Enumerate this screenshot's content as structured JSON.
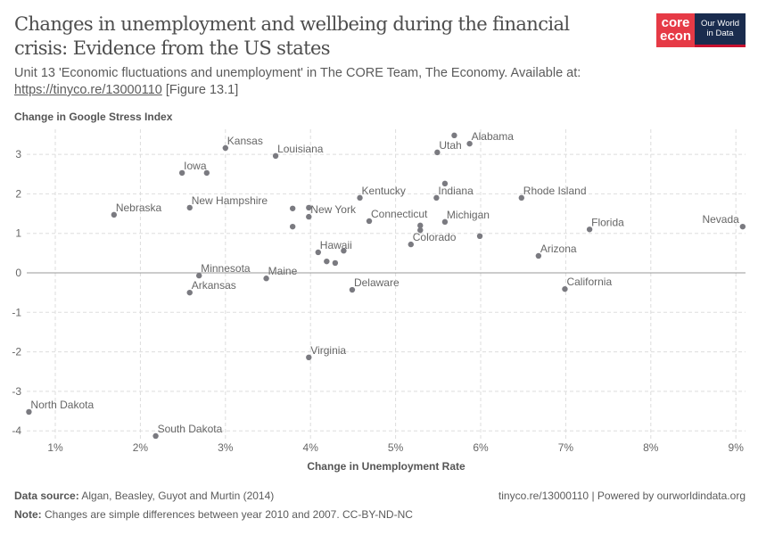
{
  "title": "Changes in unemployment and wellbeing during the financial crisis: Evidence from the US states",
  "subtitle_text": "Unit 13 'Economic fluctuations and unemployment' in The CORE Team, The Economy. Available at:",
  "subtitle_link": "https://tinyco.re/13000110",
  "subtitle_suffix": " [Figure 13.1]",
  "logo": {
    "core_line1": "core",
    "core_line2": "econ",
    "owid_line1": "Our World",
    "owid_line2": "in Data",
    "core_color": "#e63a46",
    "owid_color": "#1a2c4e"
  },
  "footer": {
    "source_label": "Data source:",
    "source_text": " Algan, Beasley, Guyot and Murtin (2014)",
    "note_label": "Note:",
    "note_text": " Changes are simple differences between year 2010 and 2007. CC-BY-ND-NC",
    "right_text": "tinyco.re/13000110 | Powered by ourworldindata.org"
  },
  "chart_data": {
    "type": "scatter",
    "xlabel": "Change in Unemployment Rate",
    "ylabel": "Change in Google Stress Index",
    "xlim": [
      0.68,
      9.1
    ],
    "ylim": [
      -4.3,
      3.6
    ],
    "x_ticks": [
      1,
      2,
      3,
      4,
      5,
      6,
      7,
      8,
      9
    ],
    "x_tick_labels": [
      "1%",
      "2%",
      "3%",
      "4%",
      "5%",
      "6%",
      "7%",
      "8%",
      "9%"
    ],
    "y_ticks": [
      -4,
      -3,
      -2,
      -1,
      0,
      1,
      2,
      3
    ],
    "y_tick_labels": [
      "-4",
      "-3",
      "-2",
      "-1",
      "0",
      "1",
      "2",
      "3"
    ],
    "grid": true,
    "point_color": "#7a7a80",
    "points": [
      {
        "label": "Kansas",
        "x": 3.0,
        "y": 3.16
      },
      {
        "label": "Louisiana",
        "x": 3.59,
        "y": 2.96
      },
      {
        "label": "Iowa",
        "x": 2.49,
        "y": 2.53
      },
      {
        "label": "",
        "x": 2.78,
        "y": 2.53
      },
      {
        "label": "Nebraska",
        "x": 1.69,
        "y": 1.47
      },
      {
        "label": "New Hampshire",
        "x": 2.58,
        "y": 1.65
      },
      {
        "label": "",
        "x": 3.79,
        "y": 1.63
      },
      {
        "label": "",
        "x": 3.98,
        "y": 1.65
      },
      {
        "label": "New York",
        "x": 3.98,
        "y": 1.42
      },
      {
        "label": "",
        "x": 3.79,
        "y": 1.17
      },
      {
        "label": "Kentucky",
        "x": 4.58,
        "y": 1.9
      },
      {
        "label": "Connecticut",
        "x": 4.69,
        "y": 1.31
      },
      {
        "label": "",
        "x": 5.29,
        "y": 1.2
      },
      {
        "label": "",
        "x": 5.29,
        "y": 1.08
      },
      {
        "label": "Colorado",
        "x": 5.18,
        "y": 0.72
      },
      {
        "label": "Hawaii",
        "x": 4.09,
        "y": 0.52
      },
      {
        "label": "",
        "x": 4.39,
        "y": 0.56
      },
      {
        "label": "",
        "x": 4.19,
        "y": 0.29
      },
      {
        "label": "",
        "x": 4.29,
        "y": 0.25
      },
      {
        "label": "Utah",
        "x": 5.49,
        "y": 3.05
      },
      {
        "label": "",
        "x": 5.69,
        "y": 3.48
      },
      {
        "label": "Alabama",
        "x": 5.87,
        "y": 3.27
      },
      {
        "label": "Indiana",
        "x": 5.48,
        "y": 1.9
      },
      {
        "label": "",
        "x": 5.58,
        "y": 2.26
      },
      {
        "label": "Michigan",
        "x": 5.58,
        "y": 1.29
      },
      {
        "label": "",
        "x": 5.99,
        "y": 0.93
      },
      {
        "label": "Rhode Island",
        "x": 6.48,
        "y": 1.9
      },
      {
        "label": "Florida",
        "x": 7.28,
        "y": 1.1
      },
      {
        "label": "Nevada",
        "x": 9.08,
        "y": 1.17
      },
      {
        "label": "Arizona",
        "x": 6.68,
        "y": 0.43
      },
      {
        "label": "California",
        "x": 6.99,
        "y": -0.41
      },
      {
        "label": "Delaware",
        "x": 4.49,
        "y": -0.43
      },
      {
        "label": "Maine",
        "x": 3.48,
        "y": -0.14
      },
      {
        "label": "Minnesota",
        "x": 2.69,
        "y": -0.07
      },
      {
        "label": "Arkansas",
        "x": 2.58,
        "y": -0.5
      },
      {
        "label": "Virginia",
        "x": 3.98,
        "y": -2.14
      },
      {
        "label": "North Dakota",
        "x": 0.69,
        "y": -3.52
      },
      {
        "label": "South Dakota",
        "x": 2.18,
        "y": -4.13
      }
    ]
  }
}
